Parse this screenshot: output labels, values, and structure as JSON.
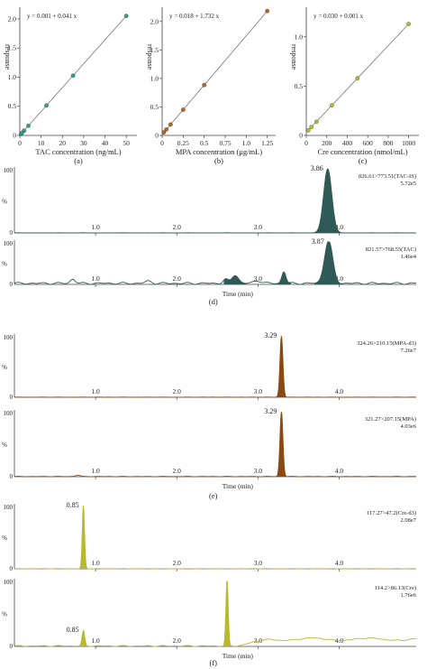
{
  "chart_data": [
    {
      "id": "a",
      "type": "scatter",
      "panel_label": "(a)",
      "equation": "y = 0.001  +  0.041  x",
      "xlabel": "TAC concentration  (ng/mL)",
      "ylabel": "response",
      "xlim": [
        0,
        55
      ],
      "ylim": [
        0,
        2.2
      ],
      "xticks": [
        0,
        10,
        20,
        30,
        40,
        50
      ],
      "yticks": [
        0.0,
        0.5,
        1.0,
        1.5,
        2.0
      ],
      "ytick_labels": [
        "0",
        "0.5",
        "1.0",
        "1.5",
        "2.0"
      ],
      "fit": {
        "intercept": 0.001,
        "slope": 0.041
      },
      "x": [
        0.5,
        1,
        2,
        4,
        12.5,
        25,
        50
      ],
      "y": [
        0.022,
        0.042,
        0.083,
        0.165,
        0.514,
        1.026,
        2.051
      ],
      "color": "#3a9a8a"
    },
    {
      "id": "b",
      "type": "scatter",
      "panel_label": "(b)",
      "equation": "y = 0.018  +  1.732  x",
      "xlabel": "MPA concentration  (μg/mL)",
      "ylabel": "response",
      "xlim": [
        0,
        1.35
      ],
      "ylim": [
        0,
        2.25
      ],
      "xticks": [
        0,
        0.25,
        0.5,
        0.75,
        1.0,
        1.25
      ],
      "xtick_labels": [
        "0",
        "0.25",
        "0.5",
        "0.75",
        "1.0",
        "1.25"
      ],
      "yticks": [
        0.0,
        0.5,
        1.0,
        1.5,
        2.0
      ],
      "ytick_labels": [
        "0",
        "0.5",
        "1.0",
        "1.5",
        "2.0"
      ],
      "fit": {
        "intercept": 0.018,
        "slope": 1.732
      },
      "x": [
        0.02,
        0.05,
        0.1,
        0.25,
        0.5,
        1.25
      ],
      "y": [
        0.053,
        0.105,
        0.191,
        0.451,
        0.884,
        2.183
      ],
      "color": "#b5651d"
    },
    {
      "id": "c",
      "type": "scatter",
      "panel_label": "(c)",
      "equation": "y = 0.030  +  0.001  x",
      "xlabel": "Cre concentration  (nmol/mL)",
      "ylabel": "response",
      "xlim": [
        0,
        1100
      ],
      "ylim": [
        0,
        1.3
      ],
      "xticks": [
        0,
        200,
        400,
        600,
        800,
        1000
      ],
      "yticks": [
        0.0,
        0.5,
        1.0
      ],
      "ytick_labels": [
        "0",
        "0.5",
        "1.0"
      ],
      "fit": {
        "intercept": 0.03,
        "slope": 0.0011
      },
      "x": [
        20,
        50,
        100,
        250,
        500,
        1000
      ],
      "y": [
        0.052,
        0.085,
        0.14,
        0.305,
        0.58,
        1.13
      ],
      "color": "#b8b82a"
    },
    {
      "id": "d",
      "type": "line",
      "group_label": "(d)",
      "xlabel": "Time  (min)",
      "xlim": [
        0,
        4.95
      ],
      "xticks": [
        1.0,
        2.0,
        3.0,
        4.0
      ],
      "xtick_labels": [
        "1.0",
        "2.0",
        "3.0",
        "4.0"
      ],
      "color": "#2f5a55",
      "traces": [
        {
          "transition": "826.61>773.51(TAC-IS)",
          "intensity": "5.72e5",
          "peak_rt": 3.86,
          "peak_label": "3.86",
          "ytick_labels": [
            "0",
            "100"
          ],
          "ylabel": "%",
          "peaks": [
            {
              "t": 3.86,
              "h": 100,
              "w": 0.05
            }
          ],
          "baseline_noise": 0.2
        },
        {
          "transition": "821.57>768.55(TAC)",
          "intensity": "1.46e4",
          "peak_rt": 3.87,
          "peak_label": "3.87",
          "ytick_labels": [
            "0",
            "100"
          ],
          "ylabel": "%",
          "peaks": [
            {
              "t": 3.87,
              "h": 100,
              "w": 0.05
            },
            {
              "t": 0.72,
              "h": 10,
              "w": 0.03
            },
            {
              "t": 2.6,
              "h": 9,
              "w": 0.03
            },
            {
              "t": 2.72,
              "h": 20,
              "w": 0.04
            },
            {
              "t": 3.32,
              "h": 28,
              "w": 0.025
            },
            {
              "t": 1.65,
              "h": 5,
              "w": 0.04
            },
            {
              "t": 3.0,
              "h": 6,
              "w": 0.05
            }
          ],
          "baseline_noise": 5
        }
      ]
    },
    {
      "id": "e",
      "type": "line",
      "group_label": "(e)",
      "xlabel": "Time  (min)",
      "xlim": [
        0,
        4.95
      ],
      "xticks": [
        1.0,
        2.0,
        3.0,
        4.0
      ],
      "xtick_labels": [
        "1.0",
        "2.0",
        "3.0",
        "4.0"
      ],
      "color": "#8a4a12",
      "traces": [
        {
          "transition": "324.26>210.15(MPA-d3)",
          "intensity": "7.26e7",
          "peak_rt": 3.29,
          "peak_label": "3.29",
          "ytick_labels": [
            "0",
            "100"
          ],
          "ylabel": "%",
          "peaks": [
            {
              "t": 3.29,
              "h": 100,
              "w": 0.018
            }
          ],
          "baseline_noise": 0.3
        },
        {
          "transition": "321.27>207.15(MPA)",
          "intensity": "4.03e6",
          "peak_rt": 3.29,
          "peak_label": "3.29",
          "ytick_labels": [
            "0",
            "100"
          ],
          "ylabel": "%",
          "peaks": [
            {
              "t": 3.29,
              "h": 100,
              "w": 0.018
            },
            {
              "t": 0.78,
              "h": 2,
              "w": 0.03
            }
          ],
          "baseline_noise": 0.6
        }
      ]
    },
    {
      "id": "f",
      "type": "line",
      "group_label": "(f)",
      "xlabel": "Time  (min)",
      "xlim": [
        0,
        4.95
      ],
      "xticks": [
        1.0,
        2.0,
        3.0,
        4.0
      ],
      "xtick_labels": [
        "1.0",
        "2.0",
        "3.0",
        "4.0"
      ],
      "color": "#b9b92e",
      "traces": [
        {
          "transition": "117.27>47.2(Cre-d3)",
          "intensity": "2.08e7",
          "peak_rt": 0.85,
          "peak_label": "0.85",
          "ytick_labels": [
            "0",
            "100"
          ],
          "ylabel": "%",
          "peaks": [
            {
              "t": 0.85,
              "h": 100,
              "w": 0.014
            }
          ],
          "baseline_noise": 0.3
        },
        {
          "transition": "114.2>86.13(Cre)",
          "intensity": "1.76e6",
          "peak_rt": 0.85,
          "peak_label": "0.85",
          "ytick_labels": [
            "0",
            "100"
          ],
          "ylabel": "%",
          "peaks": [
            {
              "t": 0.85,
              "h": 23,
              "w": 0.016
            },
            {
              "t": 2.62,
              "h": 100,
              "w": 0.014
            }
          ],
          "broad_hump": {
            "from": 2.75,
            "to": 4.95,
            "h": 12
          },
          "baseline_noise": 1.5
        }
      ]
    }
  ]
}
